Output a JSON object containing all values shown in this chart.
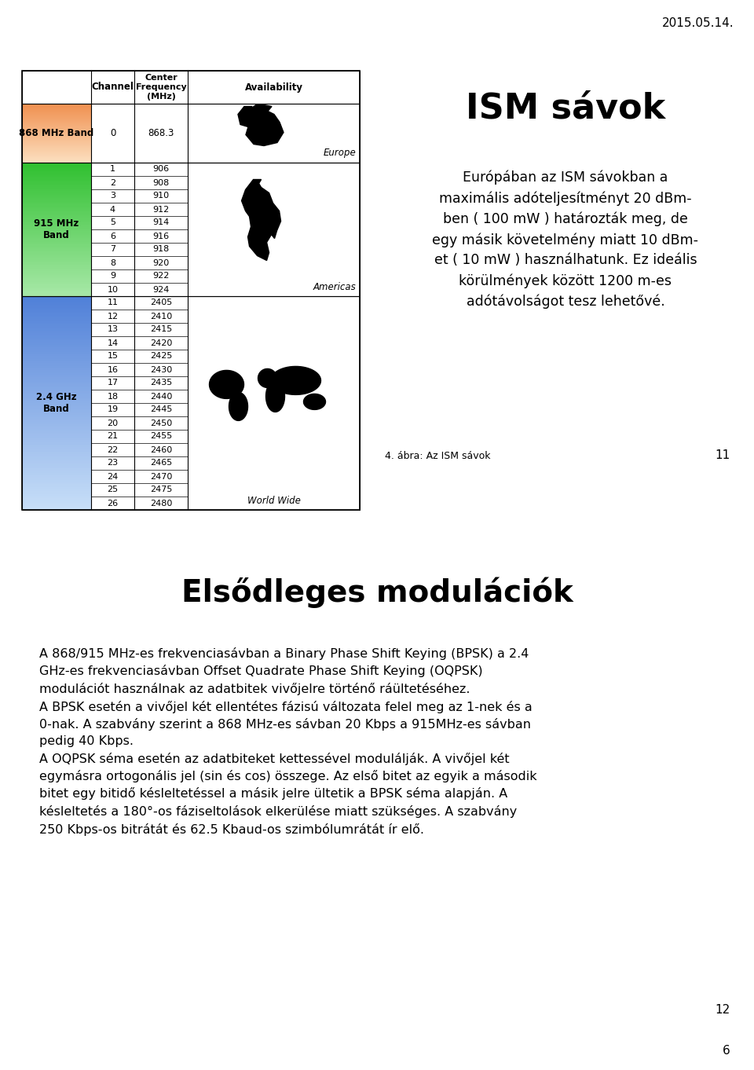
{
  "date_text": "2015.05.14.",
  "title_ism": "ISM sávok",
  "caption": "4. ábra: Az ISM sávok",
  "page_num_top": "11",
  "section_title": "Elsődleges modulációk",
  "page_num_bottom": "6",
  "page_num_bottom2": "12",
  "table_h1": "Channel",
  "table_h2": "Center\nFrequency\n(MHz)",
  "table_h3": "Availability",
  "band_868_label": "868 MHz Band",
  "band_868_ch": "0",
  "band_868_freq": "868.3",
  "band_868_avail": "Europe",
  "band_915_label": "915 MHz\nBand",
  "band_915_channels": [
    "1",
    "2",
    "3",
    "4",
    "5",
    "6",
    "7",
    "8",
    "9",
    "10"
  ],
  "band_915_freqs": [
    "906",
    "908",
    "910",
    "912",
    "914",
    "916",
    "918",
    "920",
    "922",
    "924"
  ],
  "band_915_avail": "Americas",
  "band_24_label": "2.4 GHz\nBand",
  "band_24_channels": [
    "11",
    "12",
    "13",
    "14",
    "15",
    "16",
    "17",
    "18",
    "19",
    "20",
    "21",
    "22",
    "23",
    "24",
    "25",
    "26"
  ],
  "band_24_freqs": [
    "2405",
    "2410",
    "2415",
    "2420",
    "2425",
    "2430",
    "2435",
    "2440",
    "2445",
    "2450",
    "2455",
    "2460",
    "2465",
    "2470",
    "2475",
    "2480"
  ],
  "band_24_avail": "World Wide",
  "color_868_top": "#f09050",
  "color_868_bot": "#fce0c0",
  "color_915_top": "#30c030",
  "color_915_bot": "#a8e8a8",
  "color_24_top": "#5080d8",
  "color_24_bot": "#c8dff8",
  "right_para": "Európában az ISM sávokban a\nmaxi mális adóteljesítményt 20 dBm-\nben ( 100 mW ) határozták meg, de\negy másik követelmény miatt 10 dBm-\net ( 10 mW ) használhatunk. Ez ideális\nkörülmények között 1200 m-es\nadótávolságot tesz lehetővé.",
  "body_all": "A 868/915 MHz-es frekvenciasávban a Binary Phase Shift Keying (BPSK) a 2.4\nGHz-es frekvenciasávban Offset Quadrate Phase Shift Keying (OQPSK)\nmodulációt használnak az adatbitek vivőjelre történő ráültetéséhez.\nA BPSK esetén a vivőjel két ellentétes fázisú változata felel meg az 1-nek és a\n0-nak. A szabvány szerint a 868 MHz-es sávban 20 Kbps a 915MHz-es sávban\npedig 40 Kbps.\nA OQPSK séma esetén az adatbiteket kettessével modulálják. A vivőjel két\negymásra ortogonális jel (sin és cos) összege. Az első bitet az egyik a második\nbitet egy bitidő késleltetéssel a másik jelre ültetik a BPSK séma alapján. A\nkésleltetés a 180°-os fáziseltolások elkerülése miatt szükséges. A szabvány\n250 Kbps-os bitrátát és 62.5 Kbaud-os szimbólumrátát ír elő."
}
